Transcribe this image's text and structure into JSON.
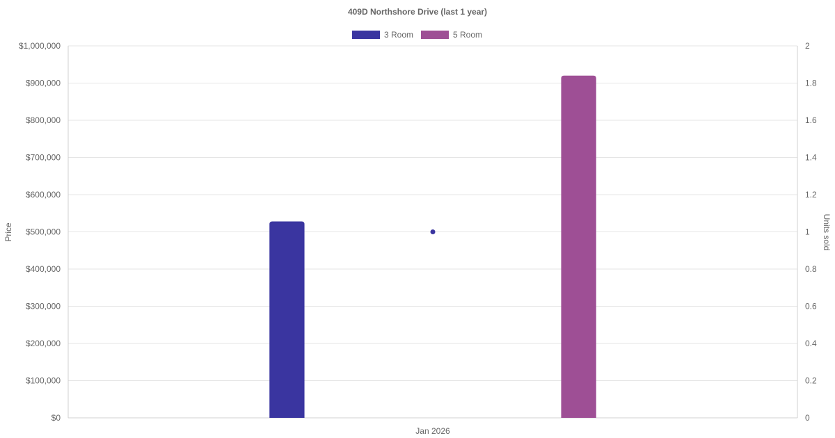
{
  "chart_data": {
    "type": "bar",
    "title": "409D Northshore Drive (last 1 year)",
    "categories": [
      "Jan 2026"
    ],
    "series": [
      {
        "name": "3 Room",
        "type": "bar",
        "axis": "left",
        "color": "#3a35a0",
        "values": [
          528000
        ]
      },
      {
        "name": "5 Room",
        "type": "bar",
        "axis": "left",
        "color": "#9e4f95",
        "values": [
          920000
        ]
      },
      {
        "name": "",
        "type": "scatter",
        "axis": "right",
        "color": "#3a35a0",
        "values": [
          1
        ]
      }
    ],
    "legend": {
      "position": "top",
      "entries": [
        "3 Room",
        "5 Room"
      ]
    },
    "y_left": {
      "label": "Price",
      "ylim": [
        0,
        1000000
      ],
      "ticks": [
        "$0",
        "$100,000",
        "$200,000",
        "$300,000",
        "$400,000",
        "$500,000",
        "$600,000",
        "$700,000",
        "$800,000",
        "$900,000",
        "$1,000,000"
      ]
    },
    "y_right": {
      "label": "Units sold",
      "ylim": [
        0,
        2
      ],
      "ticks": [
        "0",
        "0.2",
        "0.4",
        "0.6",
        "0.8",
        "1",
        "1.2",
        "1.4",
        "1.6",
        "1.8",
        "2"
      ]
    },
    "grid": true
  }
}
